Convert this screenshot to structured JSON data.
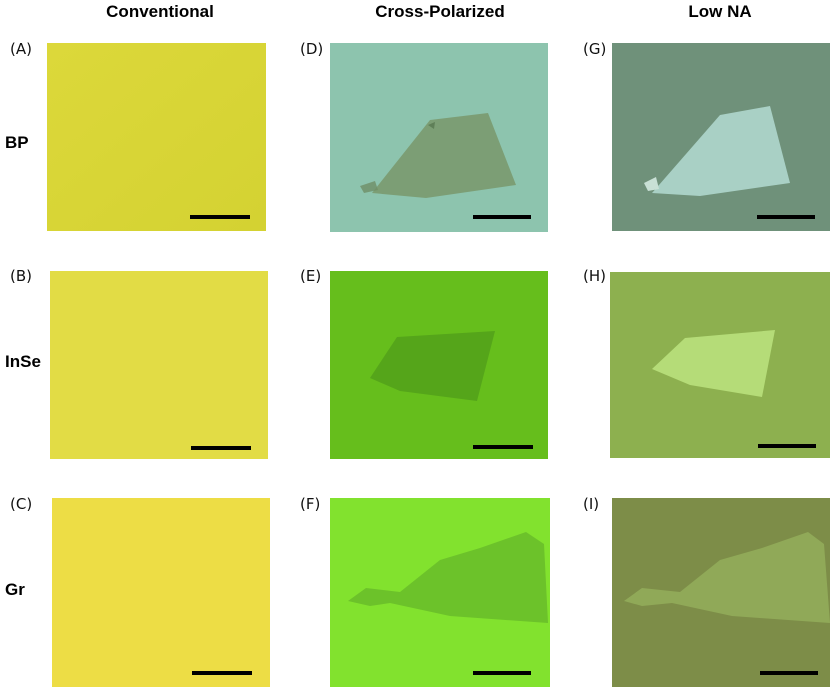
{
  "columns": [
    "Conventional",
    "Cross-Polarized",
    "Low NA"
  ],
  "rows": [
    "BP",
    "InSe",
    "Gr"
  ],
  "panels": [
    {
      "label": "(A)",
      "row": "BP",
      "column": "Conventional",
      "bg": "#dcd83a"
    },
    {
      "label": "(D)",
      "row": "BP",
      "column": "Cross-Polarized",
      "bg": "#8dc4ae",
      "flake": "#7a9a6f"
    },
    {
      "label": "(G)",
      "row": "BP",
      "column": "Low NA",
      "bg": "#6f917a",
      "flake": "#a9d0c5"
    },
    {
      "label": "(B)",
      "row": "InSe",
      "column": "Conventional",
      "bg": "#e2dc45"
    },
    {
      "label": "(E)",
      "row": "InSe",
      "column": "Cross-Polarized",
      "bg": "#66be1c",
      "flake": "#55a51a"
    },
    {
      "label": "(H)",
      "row": "InSe",
      "column": "Low NA",
      "bg": "#8db04f",
      "flake": "#b5dc78"
    },
    {
      "label": "(C)",
      "row": "Gr",
      "column": "Conventional",
      "bg": "#eddd45"
    },
    {
      "label": "(F)",
      "row": "Gr",
      "column": "Cross-Polarized",
      "bg": "#82e22e",
      "flake": "#6cc22a"
    },
    {
      "label": "(I)",
      "row": "Gr",
      "column": "Low NA",
      "bg": "#7d8d48",
      "flake": "#90a958"
    }
  ]
}
